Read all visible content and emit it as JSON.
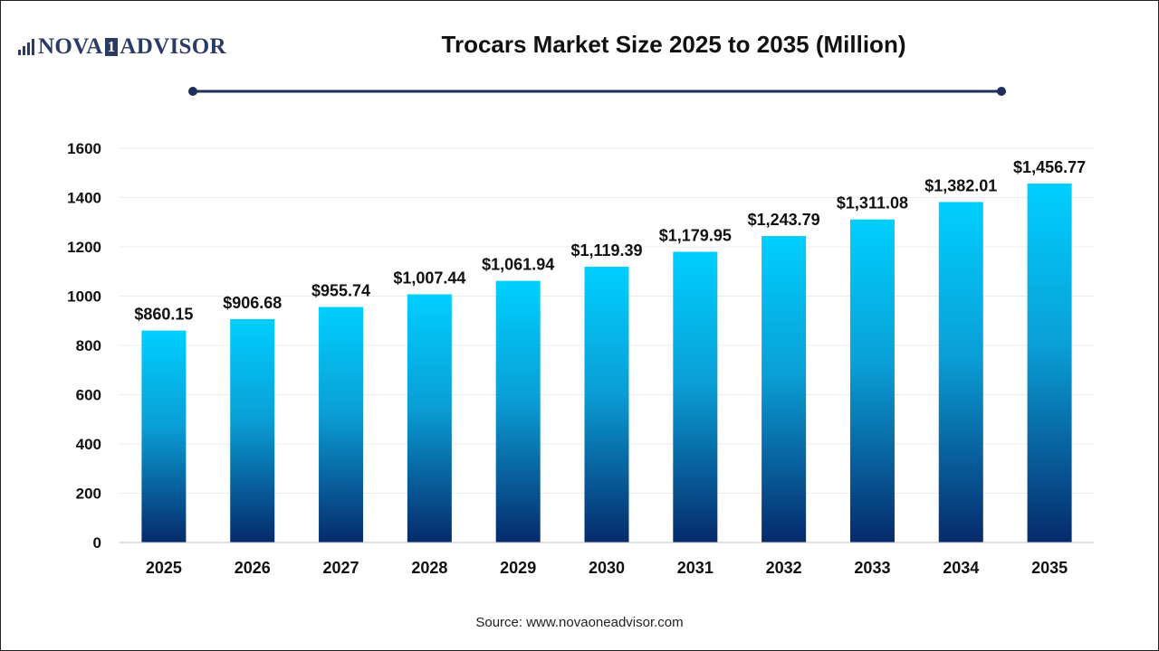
{
  "logo": {
    "left": "NOVA",
    "mid": "1",
    "right": "ADVISOR"
  },
  "colors": {
    "bar_top": "#00cfff",
    "bar_bottom": "#062a6b",
    "title_line": "#1f2d5a",
    "logo": "#2b3a67"
  },
  "source": "Source: www.novaoneadvisor.com",
  "chart_data": {
    "type": "bar",
    "title": "Trocars Market Size 2025 to 2035 (Million)",
    "xlabel": "",
    "ylabel": "",
    "ylim": [
      0,
      1600
    ],
    "yticks": [
      0,
      200,
      400,
      600,
      800,
      1000,
      1200,
      1400,
      1600
    ],
    "grid": true,
    "categories": [
      "2025",
      "2026",
      "2027",
      "2028",
      "2029",
      "2030",
      "2031",
      "2032",
      "2033",
      "2034",
      "2035"
    ],
    "values": [
      860.15,
      906.68,
      955.74,
      1007.44,
      1061.94,
      1119.39,
      1179.95,
      1243.79,
      1311.08,
      1382.01,
      1456.77
    ],
    "data_labels": [
      "$860.15",
      "$906.68",
      "$955.74",
      "$1,007.44",
      "$1,061.94",
      "$1,119.39",
      "$1,179.95",
      "$1,243.79",
      "$1,311.08",
      "$1,382.01",
      "$1,456.77"
    ]
  }
}
